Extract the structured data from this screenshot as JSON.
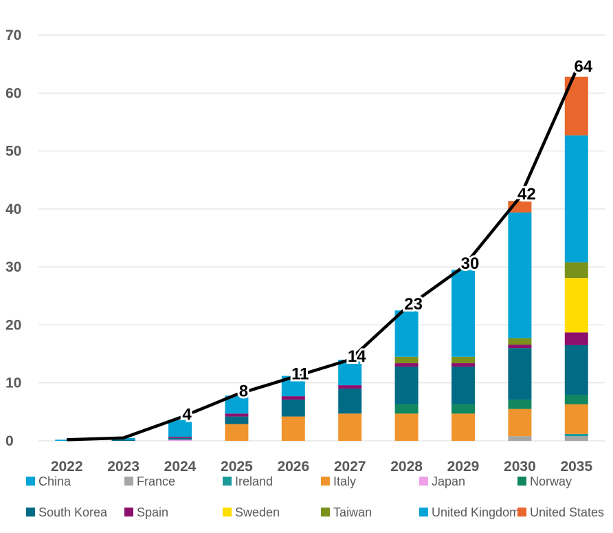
{
  "chart_data": {
    "type": "bar",
    "stacked": true,
    "title": "",
    "xlabel": "",
    "ylabel": "",
    "ylim": [
      0,
      70
    ],
    "yticks": [
      "0",
      "10",
      "20",
      "30",
      "40",
      "50",
      "60",
      "70"
    ],
    "grid": true,
    "legend_position": "bottom",
    "categories": [
      "2022",
      "2023",
      "2024",
      "2025",
      "2026",
      "2027",
      "2028",
      "2029",
      "2030",
      "2035"
    ],
    "series": [
      {
        "name": "France",
        "color": "#a6a6a6",
        "values": [
          0,
          0,
          0,
          0,
          0,
          0,
          0,
          0,
          0.8,
          0.8
        ]
      },
      {
        "name": "Ireland",
        "color": "#1b9a9a",
        "values": [
          0,
          0,
          0,
          0,
          0,
          0,
          0,
          0,
          0,
          0.4
        ]
      },
      {
        "name": "Japan",
        "color": "#f0a0e8",
        "values": [
          0,
          0,
          0.2,
          0,
          0,
          0,
          0,
          0,
          0,
          0
        ]
      },
      {
        "name": "Italy",
        "color": "#f0952e",
        "values": [
          0,
          0,
          0,
          2.9,
          4.2,
          4.7,
          4.7,
          4.7,
          4.7,
          5.1
        ]
      },
      {
        "name": "Norway",
        "color": "#11875f",
        "values": [
          0,
          0,
          0,
          0,
          0,
          0,
          1.6,
          1.6,
          1.6,
          1.6
        ]
      },
      {
        "name": "South Korea",
        "color": "#006b84",
        "values": [
          0,
          0.2,
          0.3,
          1.3,
          2.9,
          4.3,
          6.5,
          6.5,
          8.9,
          8.6
        ]
      },
      {
        "name": "Spain",
        "color": "#8c0f6d",
        "values": [
          0,
          0,
          0.2,
          0.5,
          0.6,
          0.6,
          0.6,
          0.6,
          0.6,
          2.2
        ]
      },
      {
        "name": "Sweden",
        "color": "#ffdd00",
        "values": [
          0,
          0,
          0,
          0,
          0,
          0,
          0,
          0,
          0,
          9.4
        ]
      },
      {
        "name": "Taiwan",
        "color": "#7a921b",
        "values": [
          0,
          0,
          0,
          0,
          0,
          0,
          1.1,
          1.1,
          1.1,
          2.7
        ]
      },
      {
        "name": "United Kingdom",
        "color": "#05a4d6",
        "values": [
          0.2,
          0.3,
          2.9,
          3.1,
          3.5,
          4.4,
          8.0,
          15.0,
          21.7,
          21.9
        ]
      },
      {
        "name": "United States",
        "color": "#e9662c",
        "values": [
          0,
          0,
          0,
          0,
          0,
          0,
          0,
          0,
          2.0,
          10.1
        ]
      },
      {
        "name": "China",
        "color": "#05a4d6",
        "values": [
          0,
          0,
          0,
          0,
          0,
          0,
          0,
          0,
          0,
          0
        ]
      }
    ],
    "total_line": {
      "values": [
        0.2,
        0.5,
        4,
        8,
        11,
        14,
        23,
        30,
        42,
        64
      ],
      "labels": [
        "",
        "",
        "4",
        "8",
        "11",
        "14",
        "23",
        "30",
        "42",
        "64"
      ],
      "color": "#000000"
    },
    "legend": [
      {
        "name": "China",
        "color": "#05a4d6"
      },
      {
        "name": "France",
        "color": "#a6a6a6"
      },
      {
        "name": "Ireland",
        "color": "#1b9a9a"
      },
      {
        "name": "Italy",
        "color": "#f0952e"
      },
      {
        "name": "Japan",
        "color": "#f0a0e8"
      },
      {
        "name": "Norway",
        "color": "#11875f"
      },
      {
        "name": "South Korea",
        "color": "#006b84"
      },
      {
        "name": "Spain",
        "color": "#8c0f6d"
      },
      {
        "name": "Sweden",
        "color": "#ffdd00"
      },
      {
        "name": "Taiwan",
        "color": "#7a921b"
      },
      {
        "name": "United Kingdom",
        "color": "#05a4d6"
      },
      {
        "name": "United States",
        "color": "#e9662c"
      }
    ]
  }
}
